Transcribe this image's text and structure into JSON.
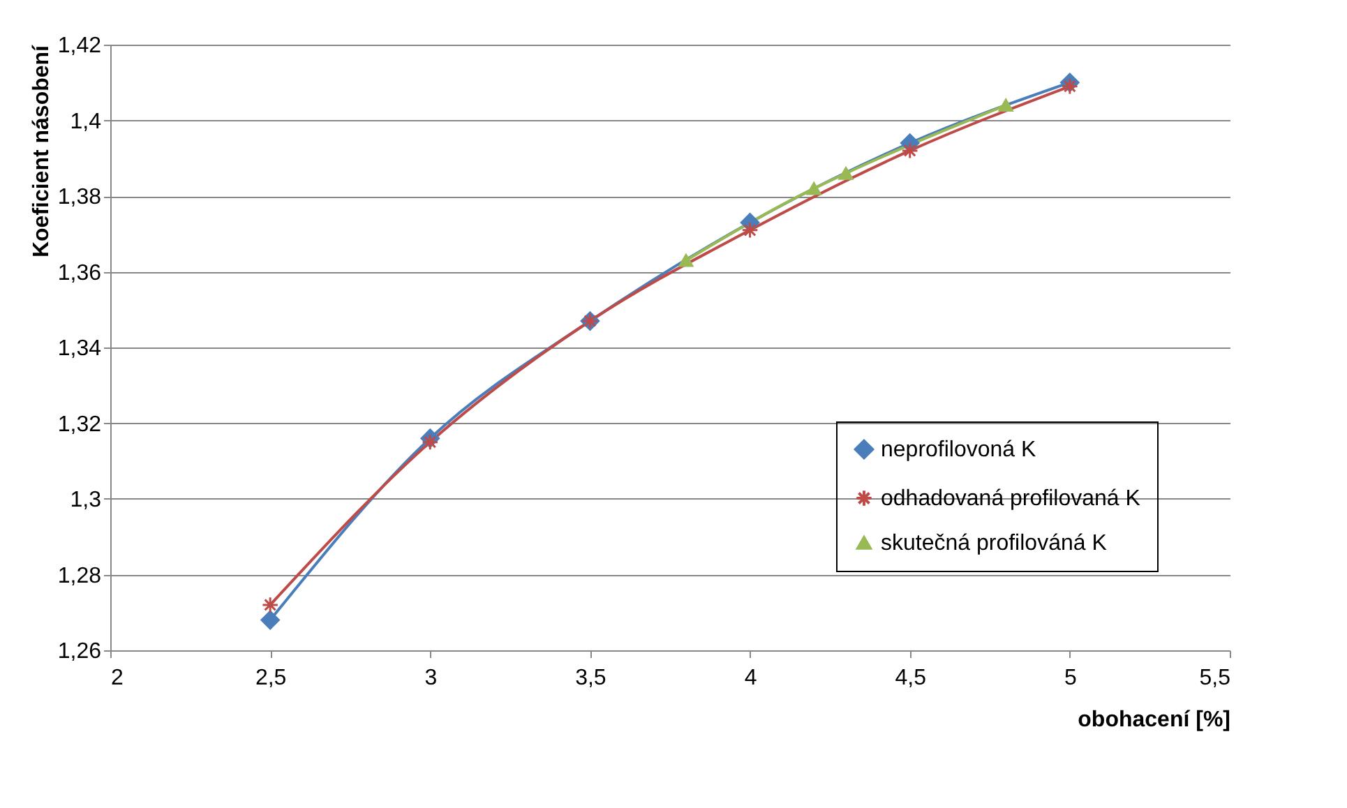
{
  "chart_data": {
    "type": "line",
    "xlabel": "obohacení [%]",
    "ylabel": "Koeficient násobení",
    "xlim": [
      2,
      5.5
    ],
    "xticks": [
      2,
      {
        "value": 2.5,
        "label": "2,5"
      },
      3,
      {
        "value": 3.5,
        "label": "3,5"
      },
      4,
      {
        "value": 4.5,
        "label": "4,5"
      },
      5,
      {
        "value": 5.5,
        "label": "5,5"
      }
    ],
    "ylim": [
      1.26,
      1.42
    ],
    "yticks": [
      {
        "value": 1.26,
        "label": "1,26"
      },
      {
        "value": 1.28,
        "label": "1,28"
      },
      {
        "value": 1.3,
        "label": "1,3"
      },
      {
        "value": 1.32,
        "label": "1,32"
      },
      {
        "value": 1.34,
        "label": "1,34"
      },
      {
        "value": 1.36,
        "label": "1,36"
      },
      {
        "value": 1.38,
        "label": "1,38"
      },
      {
        "value": 1.4,
        "label": "1,4"
      },
      {
        "value": 1.42,
        "label": "1,42"
      }
    ],
    "grid": "y",
    "legend": "bottom right",
    "line_style": "solid",
    "series": [
      {
        "name": "neprofilovoná K",
        "color": "#4a7ebb",
        "marker": "diamond",
        "x": [
          2.5,
          3,
          3.5,
          4,
          4.5,
          5
        ],
        "values": [
          1.268,
          1.316,
          1.347,
          1.373,
          1.394,
          1.41
        ]
      },
      {
        "name": "odhadovaná profilovaná K",
        "color": "#be4b48",
        "marker": "cross",
        "x": [
          2.5,
          3,
          3.5,
          4,
          4.5,
          5
        ],
        "values": [
          1.272,
          1.315,
          1.347,
          1.371,
          1.392,
          1.409
        ]
      },
      {
        "name": "skutečná profilováná K",
        "color": "#98b954",
        "marker": "triangle",
        "x": [
          3.8,
          4.2,
          4.3,
          4.8
        ],
        "values": [
          1.363,
          1.382,
          1.386,
          1.404
        ]
      }
    ]
  }
}
